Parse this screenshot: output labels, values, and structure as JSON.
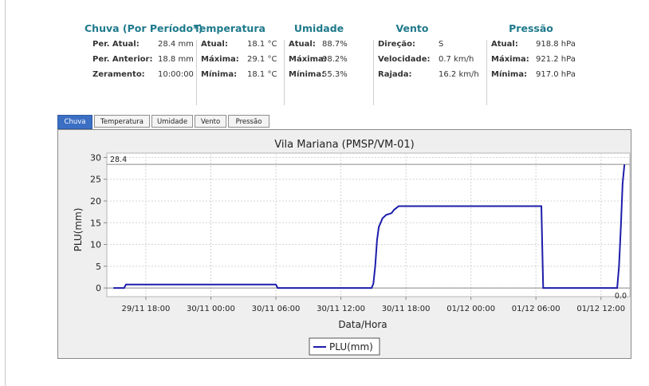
{
  "stats": {
    "groups": [
      {
        "title": "Chuva (Por Período*)",
        "rows": [
          {
            "k": "Per. Atual:",
            "v": "28.4 mm"
          },
          {
            "k": "Per. Anterior:",
            "v": "18.8 mm"
          },
          {
            "k": "Zeramento:",
            "v": "10:00:00"
          }
        ]
      },
      {
        "title": "Temperatura",
        "rows": [
          {
            "k": "Atual:",
            "v": "18.1 °C"
          },
          {
            "k": "Máxima:",
            "v": "29.1 °C"
          },
          {
            "k": "Mínima:",
            "v": "18.1 °C"
          }
        ]
      },
      {
        "title": "Umidade",
        "rows": [
          {
            "k": "Atual:",
            "v": "88.7%"
          },
          {
            "k": "Máxima:",
            "v": "98.2%"
          },
          {
            "k": "Mínima:",
            "v": "55.3%"
          }
        ]
      },
      {
        "title": "Vento",
        "rows": [
          {
            "k": "Direção:",
            "v": "S"
          },
          {
            "k": "Velocidade:",
            "v": "0.7 km/h"
          },
          {
            "k": "Rajada:",
            "v": "16.2 km/h"
          }
        ]
      },
      {
        "title": "Pressão",
        "rows": [
          {
            "k": "Atual:",
            "v": "918.8 hPa"
          },
          {
            "k": "Máxima:",
            "v": "921.2 hPa"
          },
          {
            "k": "Mínima:",
            "v": "917.0 hPa"
          }
        ]
      }
    ]
  },
  "tabs": [
    {
      "label": "Chuva",
      "active": true
    },
    {
      "label": "Temperatura",
      "active": false
    },
    {
      "label": "Umidade",
      "active": false
    },
    {
      "label": "Vento",
      "active": false
    },
    {
      "label": "Pressão",
      "active": false
    }
  ],
  "colors": {
    "series": "#1d1daa",
    "accent": "#1f7a8c",
    "tab_active": "#3b6fc4"
  },
  "chart_data": {
    "type": "line",
    "title": "Vila Mariana (PMSP/VM-01)",
    "xlabel": "Data/Hora",
    "ylabel": "PLU(mm)",
    "ylim": [
      -2,
      31
    ],
    "yticks": [
      0,
      5,
      10,
      15,
      20,
      25,
      30
    ],
    "xlim": [
      "2023-11-29 14:24",
      "2023-12-01 14:40"
    ],
    "xticks": [
      "29/11 18:00",
      "30/11 00:00",
      "30/11 06:00",
      "30/11 12:00",
      "30/11 18:00",
      "01/12 00:00",
      "01/12 06:00",
      "01/12 12:00"
    ],
    "xtick_times": [
      "2023-11-29 18:00",
      "2023-11-30 00:00",
      "2023-11-30 06:00",
      "2023-11-30 12:00",
      "2023-11-30 18:00",
      "2023-12-01 00:00",
      "2023-12-01 06:00",
      "2023-12-01 12:00"
    ],
    "grid": true,
    "legend": "bottom-center",
    "reference_lines": [
      {
        "value": 28.4,
        "label": "28.4",
        "position": "left"
      },
      {
        "value": 0,
        "label": "0.0",
        "position": "right"
      }
    ],
    "series": [
      {
        "name": "PLU(mm)",
        "points": [
          [
            "2023-11-29 15:00",
            0.0
          ],
          [
            "2023-11-29 16:00",
            0.0
          ],
          [
            "2023-11-29 16:10",
            0.8
          ],
          [
            "2023-11-30 06:00",
            0.8
          ],
          [
            "2023-11-30 06:10",
            0.0
          ],
          [
            "2023-11-30 14:50",
            0.0
          ],
          [
            "2023-11-30 15:00",
            1.0
          ],
          [
            "2023-11-30 15:10",
            5.0
          ],
          [
            "2023-11-30 15:20",
            11.0
          ],
          [
            "2023-11-30 15:30",
            14.0
          ],
          [
            "2023-11-30 15:50",
            16.0
          ],
          [
            "2023-11-30 16:10",
            16.8
          ],
          [
            "2023-11-30 16:40",
            17.2
          ],
          [
            "2023-11-30 16:55",
            18.0
          ],
          [
            "2023-11-30 17:20",
            18.8
          ],
          [
            "2023-12-01 06:30",
            18.8
          ],
          [
            "2023-12-01 06:40",
            0.0
          ],
          [
            "2023-12-01 13:30",
            0.0
          ],
          [
            "2023-12-01 13:40",
            5.0
          ],
          [
            "2023-12-01 13:50",
            14.0
          ],
          [
            "2023-12-01 14:00",
            24.0
          ],
          [
            "2023-12-01 14:10",
            28.4
          ]
        ]
      }
    ]
  }
}
